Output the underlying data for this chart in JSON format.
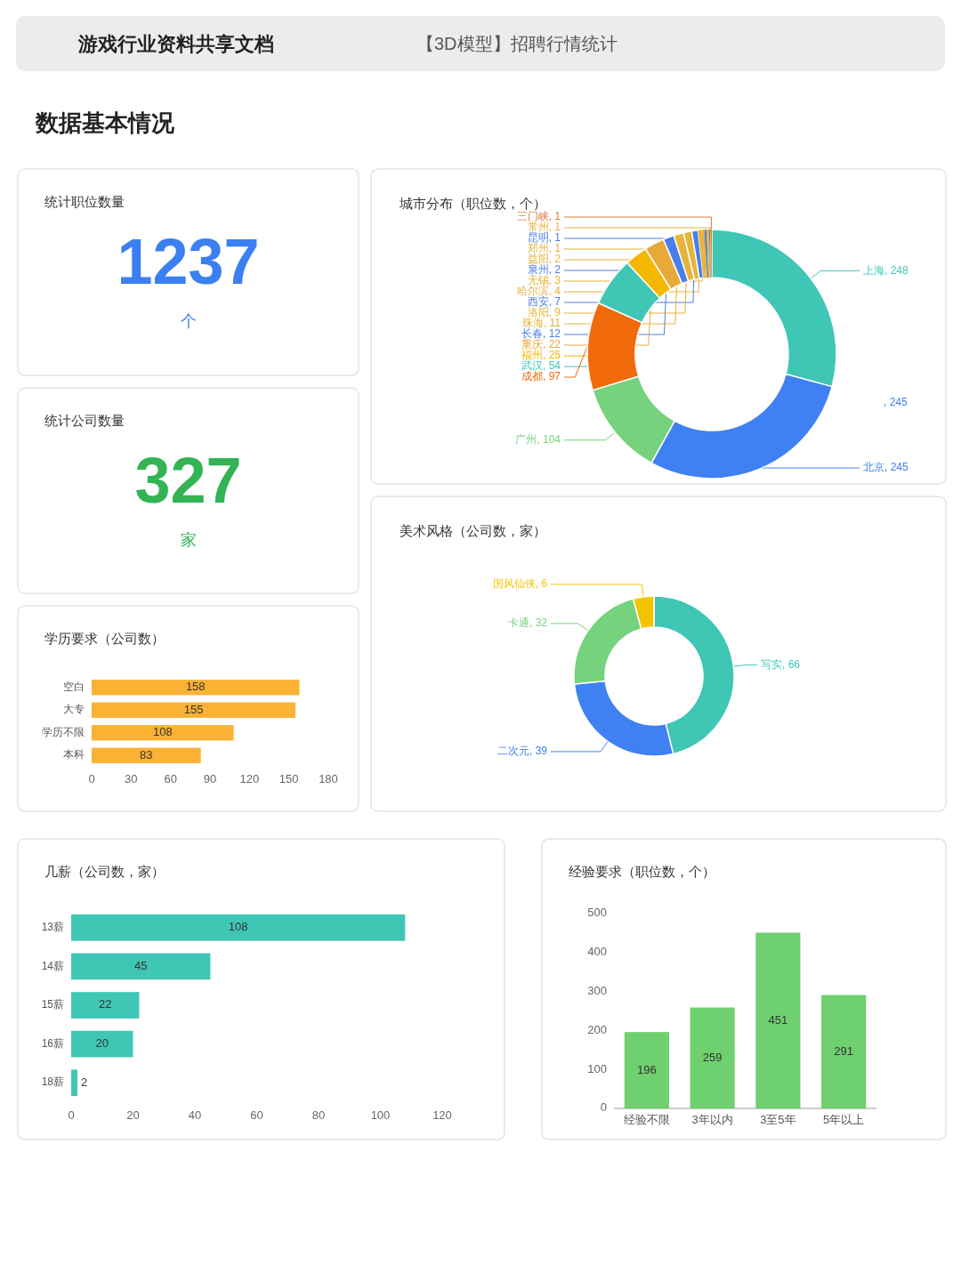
{
  "chart_data": [
    {
      "type": "other",
      "title": "【3D模型】招聘行情统计",
      "subtitle": "数据基本情况",
      "annotations": [
        "游戏行业资料共享文档"
      ]
    },
    {
      "type": "other",
      "title": "统计职位数量",
      "annotations": [
        "1237",
        "个"
      ],
      "color": "#3b7ff0"
    },
    {
      "type": "other",
      "title": "统计公司数量",
      "annotations": [
        "327",
        "家"
      ],
      "color": "#33b354"
    },
    {
      "type": "bar",
      "title": "学历要求（公司数）",
      "orientation": "horizontal",
      "categories": [
        "空白",
        "大专",
        "学历不限",
        "本科"
      ],
      "values": [
        158,
        155,
        108,
        83
      ],
      "color": "#f9b233",
      "xlim": [
        0,
        180
      ],
      "xticks": [
        0,
        30,
        60,
        90,
        120,
        150,
        180
      ],
      "data_labels": true
    },
    {
      "type": "donut",
      "title": "城市分布（职位数，个）",
      "categories": [
        "上海, 248",
        "北京, 245",
        "广州, 104",
        "成都, 97",
        "武汉, 54",
        "福州, 25",
        "重庆, 22",
        "长春, 12",
        "珠海, 11",
        "洛阳, 9",
        "西安, 7",
        "哈尔滨, 4",
        "无锡, 3",
        "泉州, 2",
        "益阳, 2",
        "郑州, 1",
        "昆明, 1",
        "常州, 1",
        "三门峡, 1"
      ],
      "values": [
        248,
        245,
        104,
        97,
        54,
        25,
        22,
        12,
        11,
        9,
        7,
        4,
        3,
        2,
        2,
        1,
        1,
        1,
        1
      ],
      "colors": [
        "#3fc6b5",
        "#3f80f2",
        "#76d27c",
        "#f06a0c",
        "#3fc6b5",
        "#f5b800",
        "#e8a93a",
        "#4a7fe8",
        "#e5b43a",
        "#e5b43a",
        "#4a7fe8",
        "#e5b43a",
        "#e5b43a",
        "#4a7fe8",
        "#e5b43a",
        "#e5b43a",
        "#4a7fe8",
        "#e5b43a",
        "#e07a3c"
      ],
      "annotations": [
        ", 245"
      ]
    },
    {
      "type": "donut",
      "title": "美术风格（公司数，家）",
      "categories": [
        "写实, 66",
        "二次元, 39",
        "卡通, 32",
        "国风仙侠, 6"
      ],
      "values": [
        66,
        39,
        32,
        6
      ],
      "colors": [
        "#3fc6b5",
        "#3f80f2",
        "#76d27c",
        "#f5c400"
      ]
    },
    {
      "type": "bar",
      "title": "几薪（公司数，家）",
      "orientation": "horizontal",
      "categories": [
        "13薪",
        "14薪",
        "15薪",
        "16薪",
        "18薪"
      ],
      "values": [
        108,
        45,
        22,
        20,
        2
      ],
      "color": "#3fc6b5",
      "xlim": [
        0,
        120
      ],
      "xticks": [
        0,
        20,
        40,
        60,
        80,
        100,
        120
      ],
      "data_labels": true
    },
    {
      "type": "bar",
      "title": "经验要求（职位数，个）",
      "categories": [
        "经验不限",
        "3年以内",
        "3至5年",
        "5年以上"
      ],
      "values": [
        196,
        259,
        451,
        291
      ],
      "color": "#6fd06f",
      "ylim": [
        0,
        500
      ],
      "yticks": [
        0,
        100,
        200,
        300,
        400,
        500
      ],
      "data_labels": true
    }
  ]
}
